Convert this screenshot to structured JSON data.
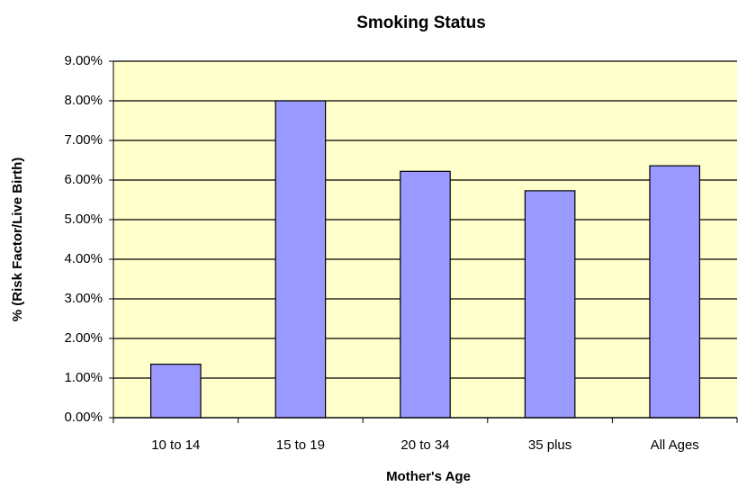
{
  "chart_data": {
    "type": "bar",
    "title": "Smoking Status",
    "x_label": "Mother's Age",
    "y_label": "% (Risk Factor/Live Birth)",
    "categories": [
      "10 to 14",
      "15 to 19",
      "20 to 34",
      "35 plus",
      "All Ages"
    ],
    "values": [
      1.35,
      8.0,
      6.22,
      5.73,
      6.36
    ],
    "color": "#9999ff",
    "background": "#ffffcc",
    "ylim": [
      0,
      9
    ],
    "yticks": [
      {
        "value": 0,
        "label": "0.00%"
      },
      {
        "value": 1,
        "label": "1.00%"
      },
      {
        "value": 2,
        "label": "2.00%"
      },
      {
        "value": 3,
        "label": "3.00%"
      },
      {
        "value": 4,
        "label": "4.00%"
      },
      {
        "value": 5,
        "label": "5.00%"
      },
      {
        "value": 6,
        "label": "6.00%"
      },
      {
        "value": 7,
        "label": "7.00%"
      },
      {
        "value": 8,
        "label": "8.00%"
      },
      {
        "value": 9,
        "label": "9.00%"
      }
    ],
    "grid": true
  }
}
